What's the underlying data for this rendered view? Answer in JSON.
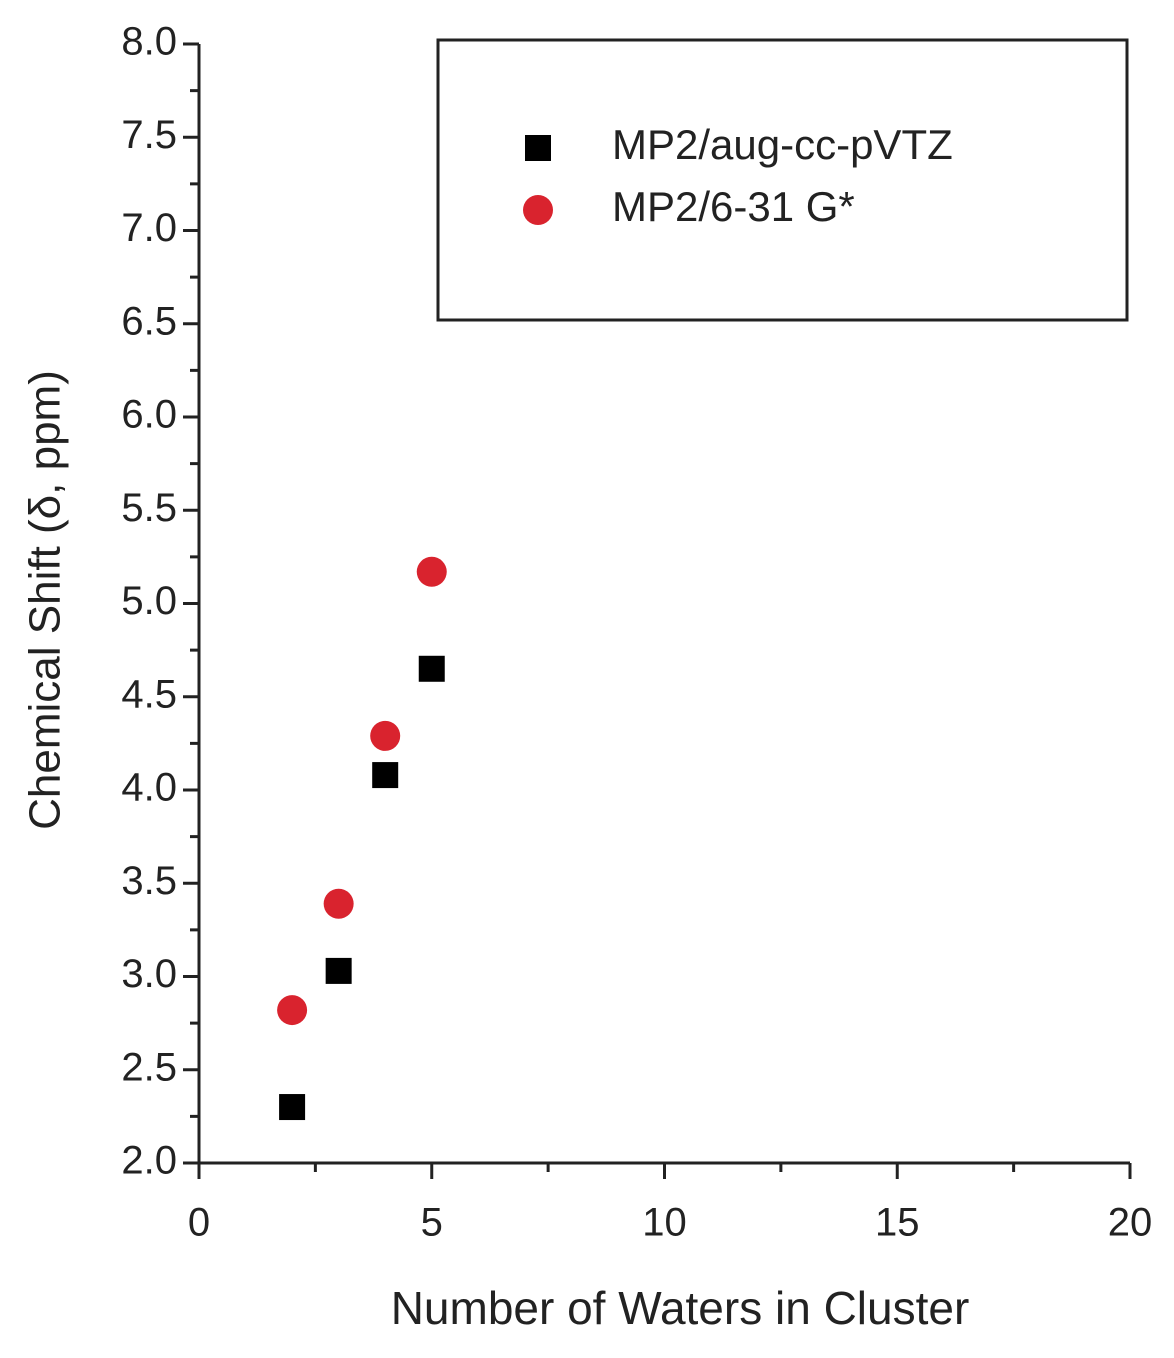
{
  "chart_data": {
    "type": "scatter",
    "xlabel": "Number of Waters in Cluster",
    "ylabel": "Chemical Shift (δ, ppm)",
    "xlim": [
      0,
      20
    ],
    "xticks": [
      0,
      5,
      10,
      15,
      20
    ],
    "minor_xticks": [
      2.5,
      7.5,
      12.5,
      17.5
    ],
    "ylim": [
      2,
      8
    ],
    "yticks": [
      {
        "value": 2,
        "label": "2.0"
      },
      {
        "value": 2.5,
        "label": "2.5"
      },
      {
        "value": 3,
        "label": "3.0"
      },
      {
        "value": 3.5,
        "label": "3.5"
      },
      {
        "value": 4,
        "label": "4.0"
      },
      {
        "value": 4.5,
        "label": "4.5"
      },
      {
        "value": 5,
        "label": "5.0"
      },
      {
        "value": 5.5,
        "label": "5.5"
      },
      {
        "value": 6,
        "label": "6.0"
      },
      {
        "value": 6.5,
        "label": "6.5"
      },
      {
        "value": 7,
        "label": "7.0"
      },
      {
        "value": 7.5,
        "label": "7.5"
      },
      {
        "value": 8,
        "label": "8.0"
      }
    ],
    "minor_yticks": [
      2.25,
      2.75,
      3.25,
      3.75,
      4.25,
      4.75,
      5.25,
      5.75,
      6.25,
      6.75,
      7.25,
      7.75
    ],
    "legend": "upper right",
    "series": [
      {
        "name": "MP2/aug-cc-pVTZ",
        "color": "#000000",
        "marker": "square",
        "x": [
          2,
          3,
          4,
          5
        ],
        "values": [
          2.3,
          3.03,
          4.08,
          4.65
        ]
      },
      {
        "name": "MP2/6-31 G*",
        "color": "#d9232e",
        "marker": "circle",
        "x": [
          2,
          3,
          4,
          5
        ],
        "values": [
          2.82,
          3.39,
          4.29,
          5.17
        ]
      }
    ]
  }
}
